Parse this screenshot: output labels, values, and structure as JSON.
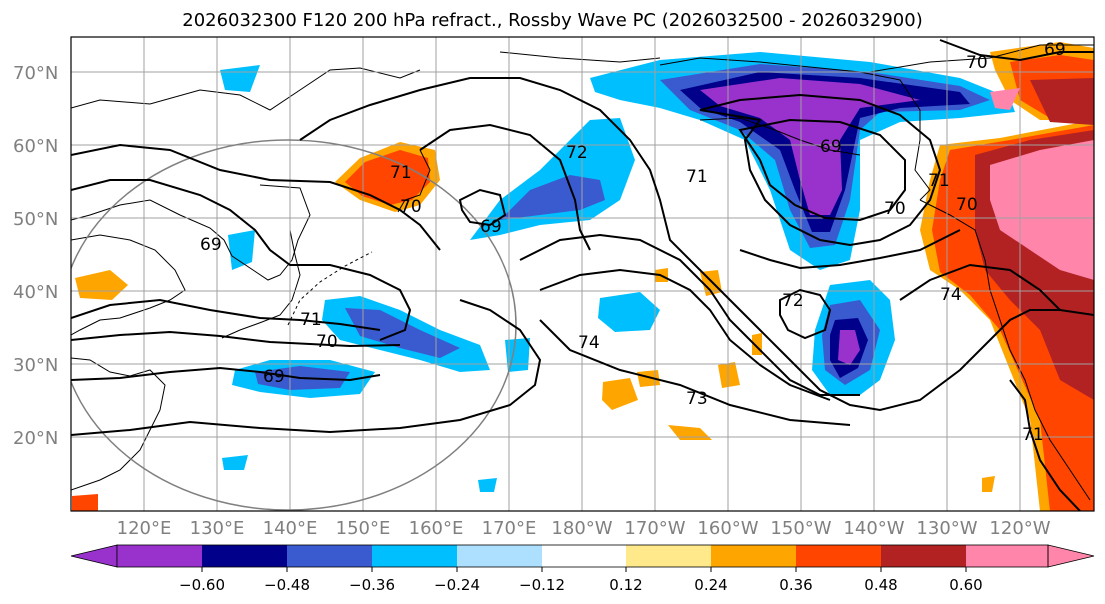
{
  "title": "2026032300 F120 200 hPa refract., Rossby Wave PC (2026032500 - 2026032900)",
  "lat_labels": [
    "70°N",
    "60°N",
    "50°N",
    "40°N",
    "30°N",
    "20°N"
  ],
  "lon_labels": [
    "120°E",
    "130°E",
    "140°E",
    "150°E",
    "160°E",
    "170°E",
    "180°W",
    "170°W",
    "160°W",
    "150°W",
    "140°W",
    "130°W",
    "120°W"
  ],
  "colorbar": {
    "ticks": [
      "−0.60",
      "−0.48",
      "−0.36",
      "−0.24",
      "−0.12",
      "0.12",
      "0.24",
      "0.36",
      "0.48",
      "0.60"
    ],
    "colors": [
      "#9932CC",
      "#00008B",
      "#3A5BCF",
      "#00BFFF",
      "#ADDFFF",
      "#FFFFFF",
      "#FFE98A",
      "#FFA500",
      "#FF4500",
      "#B22222",
      "#FF85AA"
    ]
  },
  "contour_labels": [
    "71",
    "70",
    "69",
    "72",
    "71",
    "69",
    "70",
    "71",
    "70",
    "69",
    "74",
    "73",
    "72",
    "71",
    "70",
    "74",
    "71",
    "69",
    "70",
    "69",
    "70",
    "71"
  ],
  "colors": {
    "purple": "#9932CC",
    "navy": "#00008B",
    "blue": "#3A5BCF",
    "sky": "#00BFFF",
    "lightsky": "#ADDFFF",
    "yellow": "#FFE98A",
    "orange": "#FFA500",
    "redorange": "#FF4500",
    "darkred": "#B22222",
    "pink": "#FF85AA",
    "grid": "#A0A0A0"
  }
}
